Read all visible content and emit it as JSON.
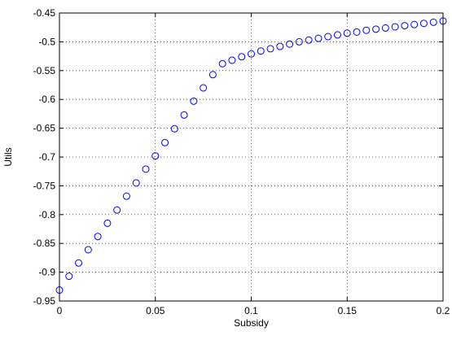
{
  "chart_data": {
    "type": "scatter",
    "xlabel": "Subsidy",
    "ylabel": "Utils",
    "xlim": [
      0,
      0.2
    ],
    "ylim": [
      -0.95,
      -0.45
    ],
    "xticks": [
      0,
      0.05,
      0.1,
      0.15,
      0.2
    ],
    "xtick_labels": [
      "0",
      "0.05",
      "0.1",
      "0.15",
      "0.2"
    ],
    "yticks": [
      -0.95,
      -0.9,
      -0.85,
      -0.8,
      -0.75,
      -0.7,
      -0.65,
      -0.6,
      -0.55,
      -0.5,
      -0.45
    ],
    "ytick_labels": [
      "-0.95",
      "-0.9",
      "-0.85",
      "-0.8",
      "-0.75",
      "-0.7",
      "-0.65",
      "-0.6",
      "-0.55",
      "-0.5",
      "-0.45"
    ],
    "grid": true,
    "marker": "circle",
    "marker_color": "#0000ff",
    "series": [
      {
        "x": [
          0,
          0.005,
          0.01,
          0.015,
          0.02,
          0.025,
          0.03,
          0.035,
          0.04,
          0.045,
          0.05,
          0.055,
          0.06,
          0.065,
          0.07,
          0.075,
          0.08,
          0.085,
          0.09,
          0.095,
          0.1,
          0.105,
          0.11,
          0.115,
          0.12,
          0.125,
          0.13,
          0.135,
          0.14,
          0.145,
          0.15,
          0.155,
          0.16,
          0.165,
          0.17,
          0.175,
          0.18,
          0.185,
          0.19,
          0.195,
          0.2
        ],
        "y": [
          -0.931,
          -0.907,
          -0.884,
          -0.861,
          -0.838,
          -0.815,
          -0.792,
          -0.768,
          -0.745,
          -0.721,
          -0.698,
          -0.675,
          -0.651,
          -0.627,
          -0.603,
          -0.58,
          -0.557,
          -0.538,
          -0.532,
          -0.526,
          -0.521,
          -0.516,
          -0.512,
          -0.508,
          -0.504,
          -0.5,
          -0.497,
          -0.494,
          -0.491,
          -0.488,
          -0.485,
          -0.483,
          -0.48,
          -0.478,
          -0.476,
          -0.474,
          -0.472,
          -0.47,
          -0.468,
          -0.466,
          -0.464
        ]
      }
    ]
  }
}
